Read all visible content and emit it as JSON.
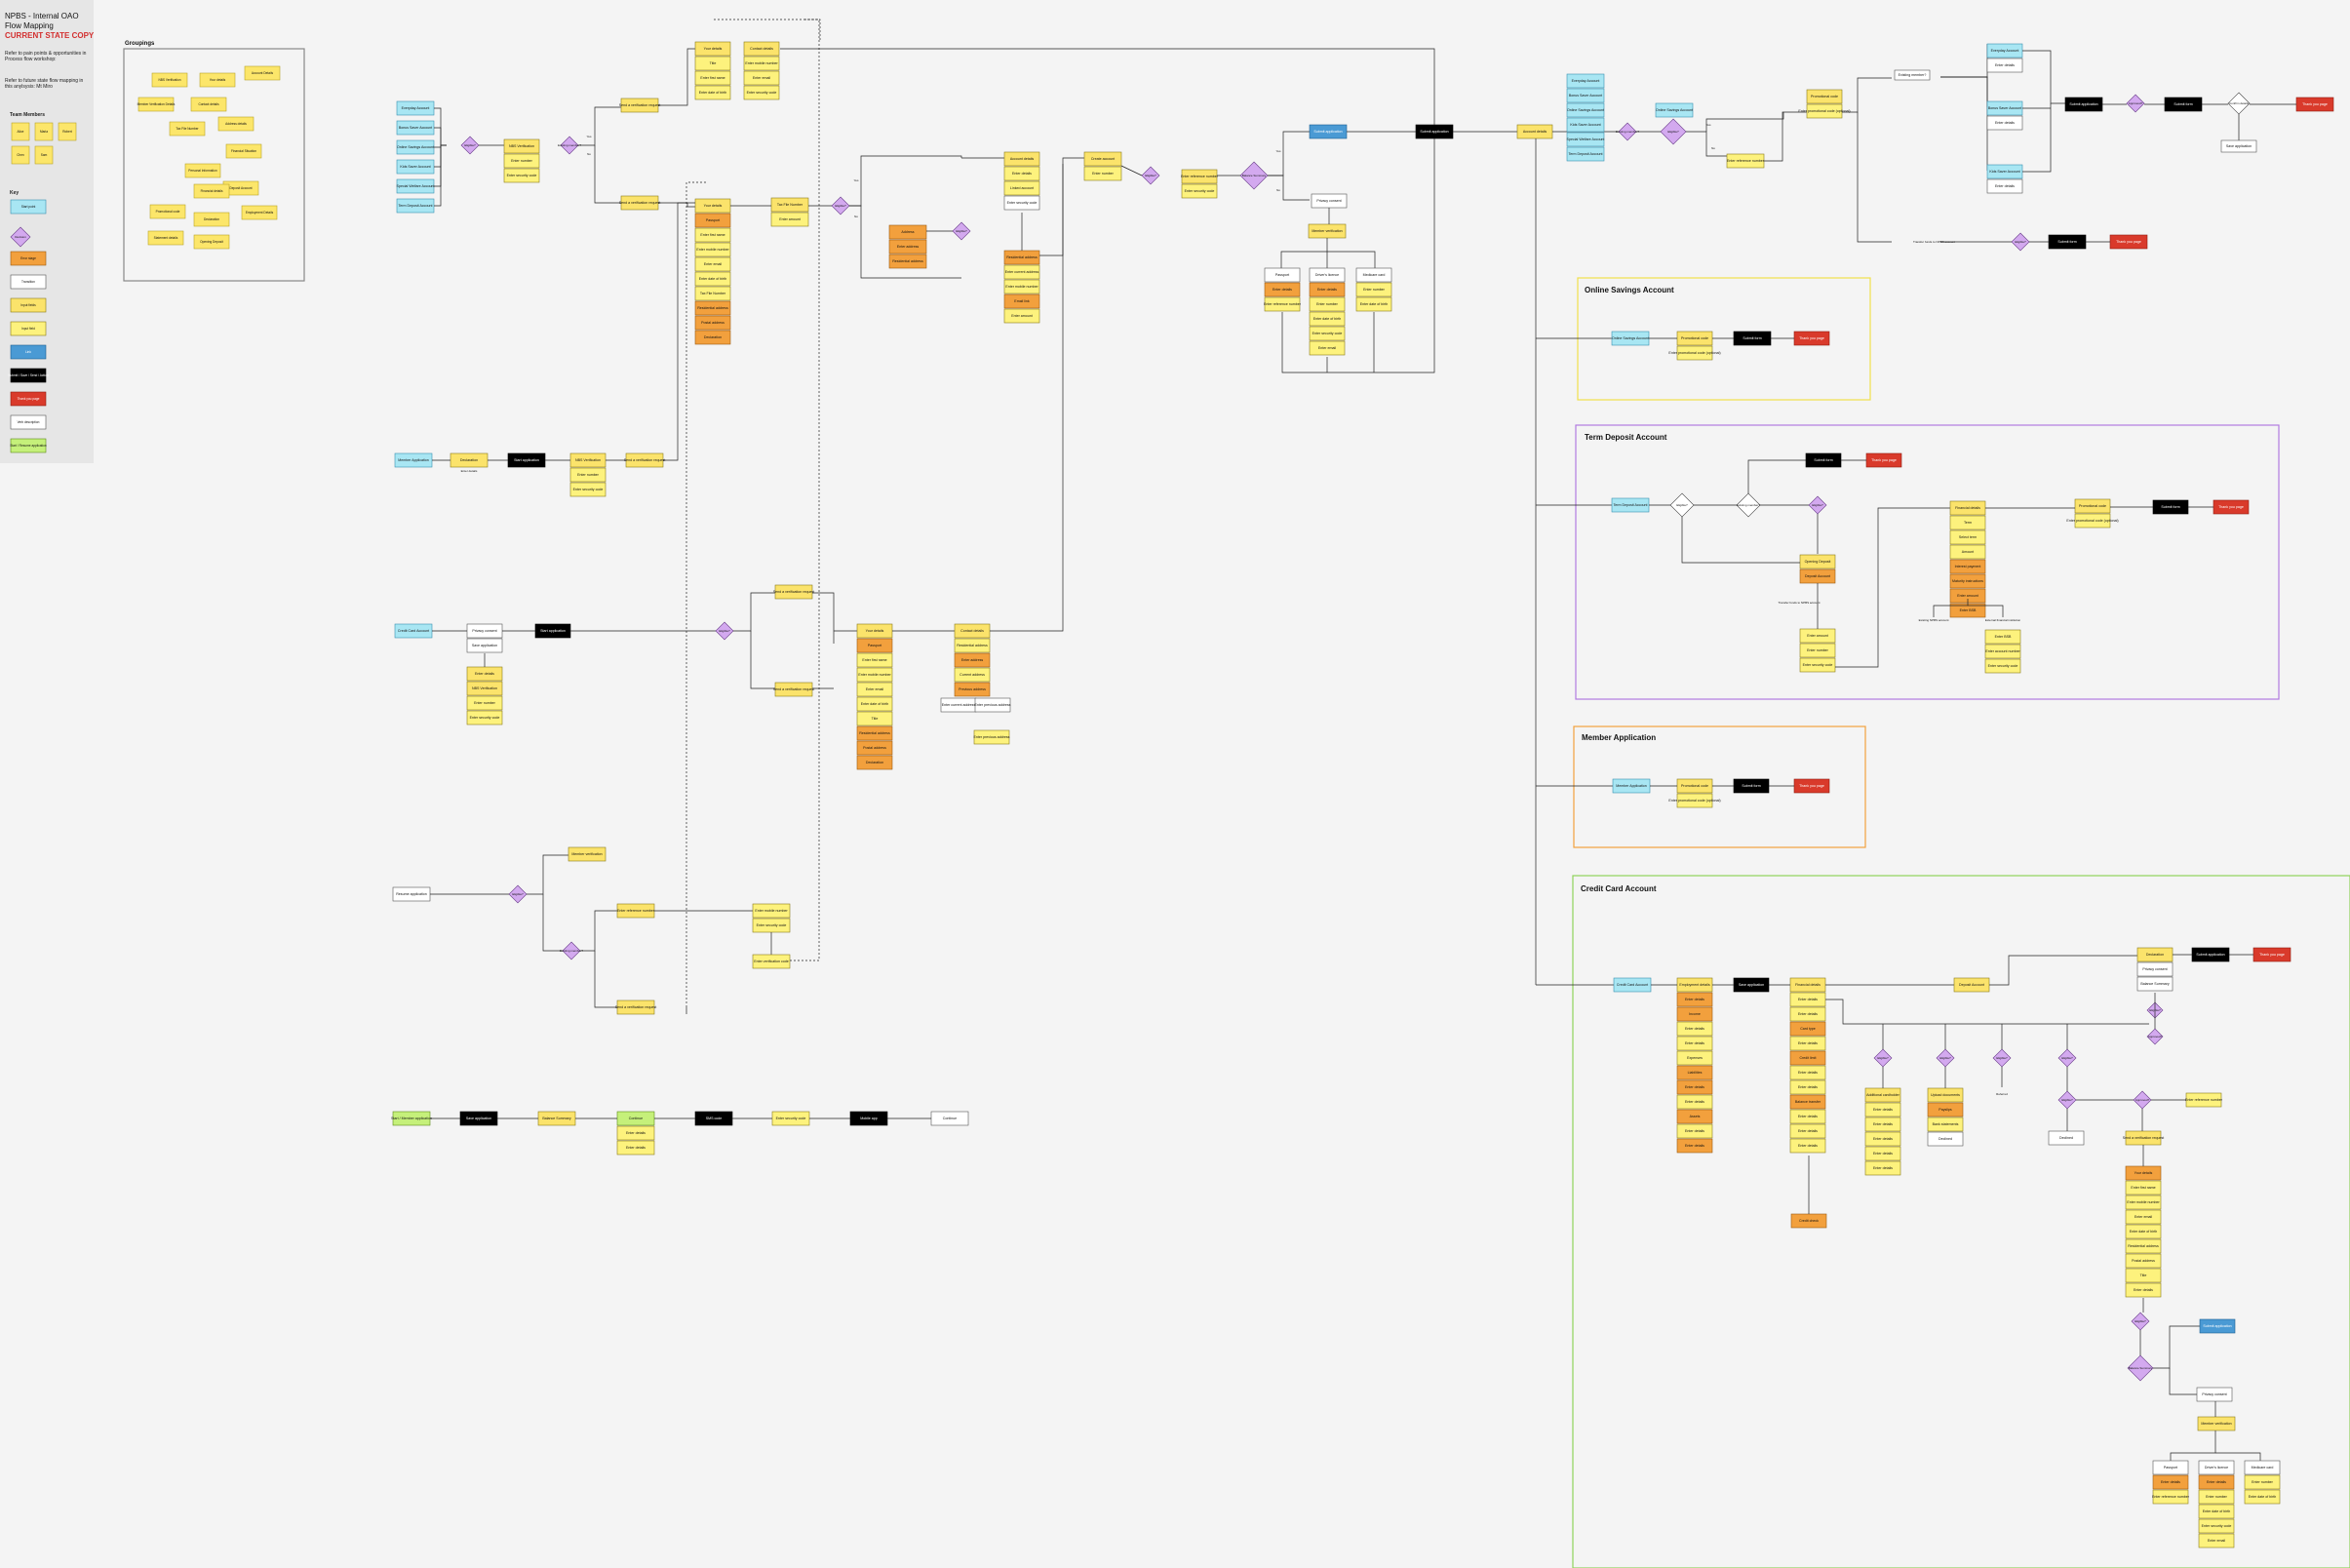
{
  "document": {
    "title_line1": "NPBS - Internal OAO",
    "title_line2": "Flow Mapping",
    "state": "CURRENT STATE COPY",
    "note1": "Refer to pain points & opportunities in Process flow workshop:",
    "note2": "Refer to future state flow mapping in this anylsysis: Mt Miro"
  },
  "team_members": {
    "heading": "Team Members",
    "names": [
      "Alice",
      "Maria",
      "Robert",
      "Chen",
      "Sam"
    ]
  },
  "key": {
    "heading": "Key",
    "items": [
      {
        "label": "Start point",
        "kind": "start"
      },
      {
        "label": "Decision",
        "kind": "decision"
      },
      {
        "label": "Error stage",
        "kind": "error"
      },
      {
        "label": "Transition",
        "kind": "plain"
      },
      {
        "label": "Input fields",
        "kind": "input"
      },
      {
        "label": "Input field",
        "kind": "input-light"
      },
      {
        "label": "Link",
        "kind": "link"
      },
      {
        "label": "Submit / Save / Send / Action",
        "kind": "action"
      },
      {
        "label": "Thank you page",
        "kind": "thanks"
      },
      {
        "label": "Verb description",
        "kind": "plain"
      },
      {
        "label": "Start / Resume application",
        "kind": "green"
      }
    ]
  },
  "groupings": {
    "heading": "Groupings",
    "items": [
      "NBS Verification",
      "Your details",
      "Account Details",
      "Member Verification Details",
      "Contact details",
      "Address details",
      "Tax File Number",
      "Financial Situation",
      "Personal Information",
      "Promotional code",
      "Declaration",
      "Employment Details",
      "Deposit Account",
      "Statement details",
      "Opening Deposit",
      "Financial details"
    ]
  },
  "sections": {
    "online_savings": "Online Savings Account",
    "term_deposit": "Term Deposit Account",
    "member_application": "Member Application",
    "credit_card": "Credit Card Account"
  },
  "nodes": {
    "entry": [
      "Everyday Account",
      "Bonus Saver Account",
      "Online Savings Account",
      "Kids Saver Account",
      "Special Welfare Account",
      "Term Deposit Account"
    ],
    "member_application": "Member Application",
    "credit_card": "Credit Card Account",
    "resume": "Resume application",
    "start_member": "Start / Member application",
    "nbs_verification": "NBS Verification",
    "enter_number": "Enter number",
    "enter_code": "Enter security code",
    "your_details": "Your details",
    "contact_details": "Contact details",
    "tax_file_number": "Tax File Number",
    "address": "Address",
    "account_details": "Account details",
    "create_account": "Create account",
    "submit_application": "Submit application",
    "start_application": "Start application",
    "member_verification": "Member verification",
    "declaration": "Declaration",
    "thank_you": "Thank you page",
    "submit_form": "Submit form",
    "promotional_code": "Promotional code",
    "enter_promo": "Enter promotional code (optional)",
    "deposit_account": "Deposit Account",
    "opening_deposit": "Opening Deposit",
    "financial_details": "Financial details",
    "employment_details": "Employment details",
    "yes": "Yes",
    "no": "No",
    "privacy_consent": "Privacy consent",
    "balance_summary": "Balance Summary",
    "existing_member": "Existing member?",
    "enter_details": "Enter details",
    "enter_first_name": "Enter first name",
    "enter_dob": "Enter date of birth",
    "title": "Title",
    "enter_mobile": "Enter mobile number",
    "enter_email": "Enter email",
    "enter_address": "Enter address",
    "residential_address": "Residential address",
    "postal_address": "Postal address",
    "eligible": "Eligible?",
    "passport": "Passport",
    "drivers_licence": "Driver's licence",
    "medicare": "Medicare card",
    "send_verification": "Send a verification request",
    "enter_reference": "Enter reference number",
    "enter_verification": "Enter verification code",
    "save_application": "Save application",
    "confirm_details": "Confirm details",
    "identity_verification": "Identity verification",
    "current_address": "Current address",
    "previous_address": "Previous address",
    "enter_current_address": "Enter current address",
    "enter_previous_address": "Enter previous address",
    "linked_account": "Linked account",
    "existing_npbs": "Existing NPBS account",
    "external_account": "External financial institution",
    "term": "Term",
    "amount": "Amount",
    "select_term": "Select term",
    "enter_amount": "Enter amount",
    "interest_payment": "Interest payment",
    "maturity_instructions": "Maturity instructions",
    "enter_bsb": "Enter BSB",
    "enter_account_number": "Enter account number",
    "card_type": "Card type",
    "credit_limit": "Credit limit",
    "income": "Income",
    "expenses": "Expenses",
    "assets": "Assets",
    "liabilities": "Liabilities",
    "balance_transfer": "Balance transfer",
    "additional_cardholder": "Additional cardholder",
    "credit_check": "Credit check",
    "approved": "Approved?",
    "declined": "Declined",
    "referred": "Referred",
    "upload_documents": "Upload documents",
    "payslips": "Payslips",
    "bank_statements": "Bank statements",
    "mobile_app": "Mobile app",
    "continue": "Continue",
    "email_link": "Email link",
    "sms_code": "SMS code",
    "transfer_funds": "Transfer funds to NPBS account"
  }
}
